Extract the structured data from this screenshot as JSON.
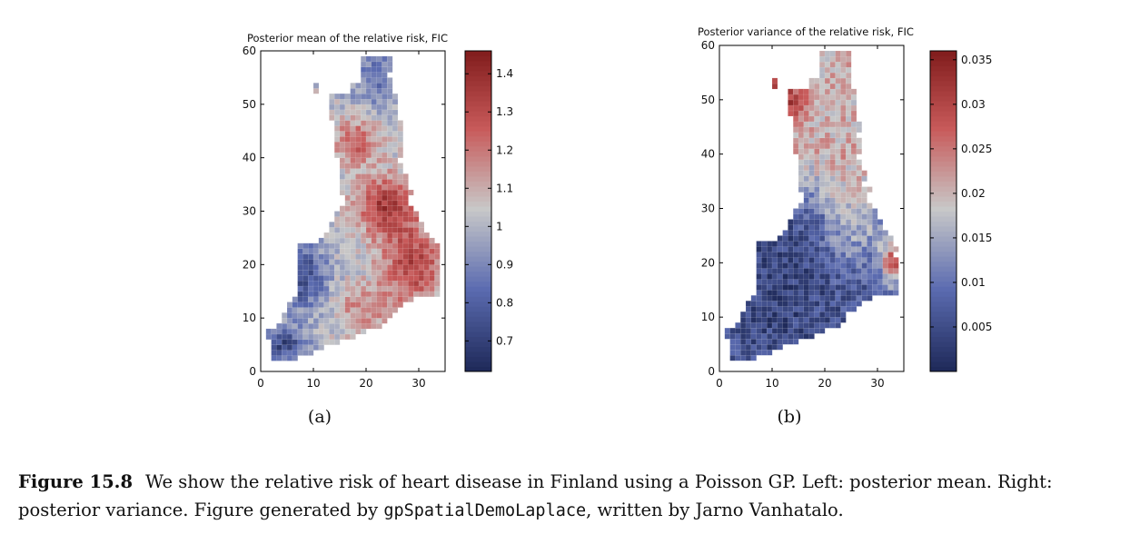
{
  "chart_data": [
    {
      "type": "heatmap",
      "panel_label": "(a)",
      "title": "Posterior mean of the relative risk, FIC",
      "xlabel": "",
      "ylabel": "",
      "xlim": [
        0,
        35
      ],
      "ylim": [
        0,
        60
      ],
      "xticks": [
        0,
        10,
        20,
        30
      ],
      "yticks": [
        0,
        10,
        20,
        30,
        40,
        50,
        60
      ],
      "colorbar": {
        "range": [
          0.62,
          1.46
        ],
        "ticks": [
          0.7,
          0.8,
          0.9,
          1,
          1.1,
          1.2,
          1.3,
          1.4
        ],
        "colormap": "diverging blue-gray-red",
        "colors": [
          "#1f2a5a",
          "#5b6bb0",
          "#c8c8c8",
          "#c85a5a",
          "#7e1a1a"
        ]
      },
      "grid": false,
      "regions": [
        {
          "area": "north",
          "approx_value": 0.88
        },
        {
          "area": "upper-west",
          "approx_value": 1.25
        },
        {
          "area": "center-east",
          "approx_value": 1.35
        },
        {
          "area": "south-east",
          "approx_value": 1.35
        },
        {
          "area": "south-west",
          "approx_value": 0.72
        }
      ]
    },
    {
      "type": "heatmap",
      "panel_label": "(b)",
      "title": "Posterior variance of the relative risk, FIC",
      "xlabel": "",
      "ylabel": "",
      "xlim": [
        0,
        35
      ],
      "ylim": [
        0,
        60
      ],
      "xticks": [
        0,
        10,
        20,
        30
      ],
      "yticks": [
        0,
        10,
        20,
        30,
        40,
        50,
        60
      ],
      "colorbar": {
        "range": [
          0,
          0.036
        ],
        "ticks": [
          0.005,
          0.01,
          0.015,
          0.02,
          0.025,
          0.03,
          0.035
        ],
        "colormap": "diverging blue-gray-red",
        "colors": [
          "#1f2a5a",
          "#5b6bb0",
          "#c8c8c8",
          "#c85a5a",
          "#7e1a1a"
        ]
      },
      "grid": false,
      "regions": [
        {
          "area": "north",
          "approx_value": 0.022
        },
        {
          "area": "upper-west",
          "approx_value": 0.026
        },
        {
          "area": "center-east",
          "approx_value": 0.021
        },
        {
          "area": "south-east",
          "approx_value": 0.032
        },
        {
          "area": "south-west",
          "approx_value": 0.004
        }
      ]
    }
  ],
  "caption": {
    "number": "Figure 15.8",
    "text_1": "We show the relative risk of heart disease in Finland using a Poisson GP. Left: posterior mean. Right: posterior variance. Figure generated by ",
    "code": "gpSpatialDemoLaplace",
    "text_2": ", written by Jarno Vanhatalo."
  }
}
